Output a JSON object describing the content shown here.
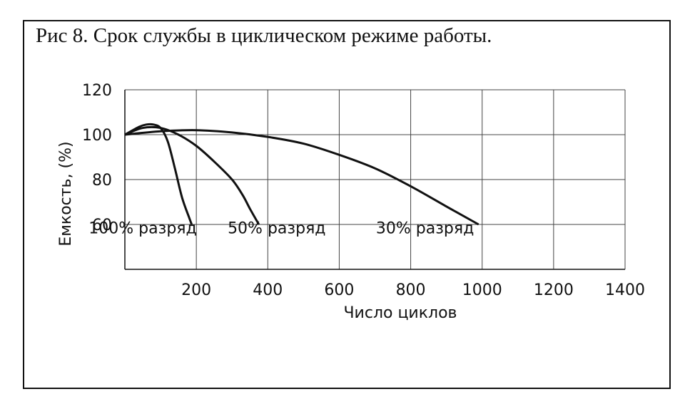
{
  "title": "Рис 8. Срок службы в циклическом режиме работы.",
  "chart_data": {
    "type": "line",
    "xlabel": "Число циклов",
    "ylabel": "Емкость, (%)",
    "xlim": [
      0,
      1400
    ],
    "ylim": [
      40,
      120
    ],
    "x_ticks": [
      200,
      400,
      600,
      800,
      1000,
      1200,
      1400
    ],
    "y_ticks": [
      60,
      80,
      100,
      120
    ],
    "grid": true,
    "series": [
      {
        "name": "100% разряд",
        "label_at": [
          50,
          56
        ],
        "x": [
          0,
          40,
          60,
          80,
          100,
          120,
          140,
          160,
          180,
          187
        ],
        "y": [
          100,
          103.5,
          104.5,
          104.5,
          103,
          97,
          85,
          72,
          63,
          60
        ]
      },
      {
        "name": "50% разряд",
        "label_at": [
          425,
          56
        ],
        "x": [
          0,
          50,
          100,
          150,
          200,
          250,
          300,
          330,
          350,
          375
        ],
        "y": [
          100,
          103,
          103,
          100,
          95,
          88,
          80,
          73,
          67,
          60
        ]
      },
      {
        "name": "30% разряд",
        "label_at": [
          840,
          56
        ],
        "x": [
          0,
          100,
          200,
          300,
          400,
          500,
          600,
          700,
          800,
          900,
          990
        ],
        "y": [
          100,
          101.5,
          102,
          101,
          99,
          96,
          91,
          85,
          77,
          68,
          60
        ]
      }
    ]
  }
}
